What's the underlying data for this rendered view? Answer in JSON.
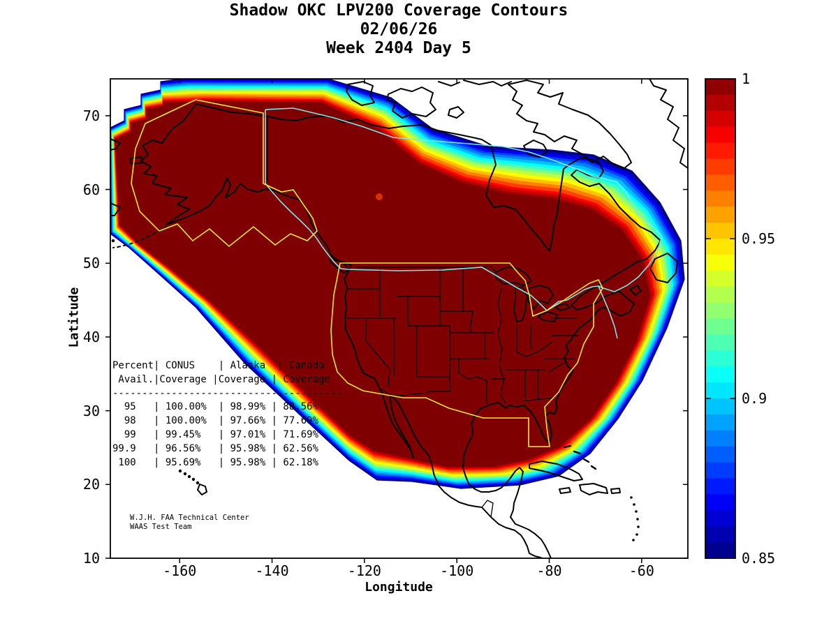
{
  "title": {
    "line1": "Shadow OKC LPV200 Coverage Contours",
    "line2": "02/06/26",
    "line3": "Week 2404 Day 5"
  },
  "axes": {
    "xlabel": "Longitude",
    "ylabel": "Latitude",
    "x_ticks": [
      {
        "value": -160,
        "label": "-160"
      },
      {
        "value": -140,
        "label": "-140"
      },
      {
        "value": -120,
        "label": "-120"
      },
      {
        "value": -100,
        "label": "-100"
      },
      {
        "value": -80,
        "label": "-80"
      },
      {
        "value": -60,
        "label": "-60"
      }
    ],
    "y_ticks": [
      {
        "value": 70,
        "label": "70"
      },
      {
        "value": 60,
        "label": "60"
      },
      {
        "value": 50,
        "label": "50"
      },
      {
        "value": 40,
        "label": "40"
      },
      {
        "value": 30,
        "label": "30"
      },
      {
        "value": 20,
        "label": "20"
      },
      {
        "value": 10,
        "label": "10"
      }
    ]
  },
  "colorbar": {
    "min": 0.85,
    "max": 1.0,
    "ticks": [
      {
        "value": 1.0,
        "label": "1"
      },
      {
        "value": 0.95,
        "label": "0.95"
      },
      {
        "value": 0.9,
        "label": "0.9"
      },
      {
        "value": 0.85,
        "label": "0.85"
      }
    ]
  },
  "coverage_table": {
    "lines": [
      "Percent| CONUS    | Alaska  | Canada",
      " Avail.|Coverage |Coverage | Coverage",
      "---------------------------------------",
      "  95   | 100.00%  | 98.99% | 88.56%",
      "  98   | 100.00%  | 97.66% | 77.69%",
      "  99   | 99.45%   | 97.01% | 71.69%",
      "99.9   | 96.56%   | 95.98% | 62.56%",
      " 100   | 95.69%   | 95.98% | 62.18%"
    ]
  },
  "credit": {
    "line1": "W.J.H. FAA Technical Center",
    "line2": "WAAS Test Team"
  },
  "colors": {
    "boundary_yellow": "#f0e83e",
    "boundary_cyan": "#7de8e8",
    "coastline": "#000000",
    "background": "#ffffff"
  },
  "chart_data": {
    "type": "heatmap",
    "title": "Shadow OKC LPV200 Coverage Contours",
    "subtitle": [
      "02/06/26",
      "Week 2404 Day 5"
    ],
    "xlabel": "Longitude",
    "ylabel": "Latitude",
    "xlim": [
      -175,
      -50
    ],
    "ylim": [
      10,
      75
    ],
    "xticks": [
      -160,
      -140,
      -120,
      -100,
      -80,
      -60
    ],
    "yticks": [
      10,
      20,
      30,
      40,
      50,
      60,
      70
    ],
    "grid": false,
    "colorbar": {
      "min": 0.85,
      "max": 1.0,
      "ticks": [
        1,
        0.95,
        0.9,
        0.85
      ],
      "colormap": "jet",
      "position": "right"
    },
    "contour_description": "LPV200 availability contours over North America; dark red core near 1.0 covering CONUS, Alaska and southern Canada, falling through jet colormap bands to 0.85 (dark blue) at the fringes",
    "coverage_summary": {
      "columns": [
        "Percent Avail.",
        "CONUS Coverage",
        "Alaska Coverage",
        "Canada Coverage"
      ],
      "rows": [
        [
          "95",
          "100.00%",
          "98.99%",
          "88.56%"
        ],
        [
          "98",
          "100.00%",
          "97.66%",
          "77.69%"
        ],
        [
          "99",
          "99.45%",
          "97.01%",
          "71.69%"
        ],
        [
          "99.9",
          "96.56%",
          "95.98%",
          "62.56%"
        ],
        [
          "100",
          "95.69%",
          "95.98%",
          "62.18%"
        ]
      ]
    }
  }
}
